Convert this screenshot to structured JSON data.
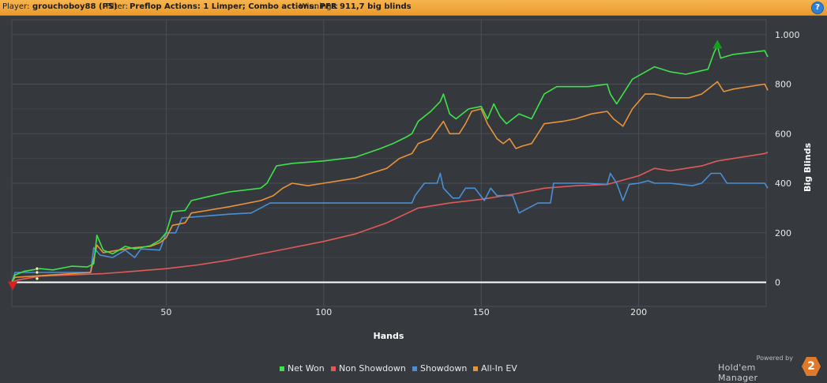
{
  "header": {
    "player_label": "Player:",
    "player_value": "grouchoboy88 (PS)",
    "filter_label": "Filter:",
    "filter_value": "Preflop Actions: 1 Limper; Combo actions: PFR",
    "winnings_label": "Winnings:",
    "winnings_value": "911,7 big blinds",
    "help_glyph": "?"
  },
  "branding": {
    "powered_by": "Powered by",
    "product": "Hold'em Manager",
    "logo_text": "2"
  },
  "chart_data": {
    "type": "line",
    "xlabel": "Hands",
    "ylabel": "Big Blinds",
    "xlim": [
      1,
      241
    ],
    "ylim": [
      -100,
      1000
    ],
    "x_ticks": [
      50,
      100,
      150,
      200
    ],
    "x_tick_labels": [
      "50",
      "100",
      "150",
      "200"
    ],
    "y_ticks": [
      1000,
      800,
      600,
      400,
      200,
      0
    ],
    "y_tick_labels": [
      "1.000",
      "800",
      "600",
      "400",
      "200",
      "0"
    ],
    "grid": true,
    "legend_position": "bottom",
    "markers": {
      "max": {
        "x": 225,
        "y": 960,
        "color": "#17a01d"
      },
      "min": {
        "x": 1,
        "y": 0,
        "color": "#e11d1d"
      }
    },
    "series": [
      {
        "name": "Net Won",
        "color": "#3ee24a",
        "points": [
          [
            1,
            0
          ],
          [
            2,
            30
          ],
          [
            5,
            45
          ],
          [
            10,
            55
          ],
          [
            14,
            50
          ],
          [
            20,
            65
          ],
          [
            25,
            62
          ],
          [
            27,
            75
          ],
          [
            28,
            190
          ],
          [
            30,
            130
          ],
          [
            33,
            115
          ],
          [
            37,
            145
          ],
          [
            40,
            135
          ],
          [
            45,
            148
          ],
          [
            48,
            170
          ],
          [
            50,
            200
          ],
          [
            52,
            285
          ],
          [
            56,
            290
          ],
          [
            58,
            330
          ],
          [
            63,
            345
          ],
          [
            70,
            365
          ],
          [
            80,
            380
          ],
          [
            82,
            400
          ],
          [
            85,
            470
          ],
          [
            90,
            480
          ],
          [
            100,
            490
          ],
          [
            110,
            505
          ],
          [
            118,
            540
          ],
          [
            122,
            560
          ],
          [
            126,
            585
          ],
          [
            128,
            600
          ],
          [
            130,
            650
          ],
          [
            134,
            690
          ],
          [
            137,
            730
          ],
          [
            138,
            760
          ],
          [
            140,
            680
          ],
          [
            142,
            660
          ],
          [
            146,
            700
          ],
          [
            150,
            710
          ],
          [
            152,
            660
          ],
          [
            154,
            720
          ],
          [
            156,
            670
          ],
          [
            158,
            640
          ],
          [
            160,
            660
          ],
          [
            162,
            680
          ],
          [
            166,
            660
          ],
          [
            170,
            760
          ],
          [
            174,
            790
          ],
          [
            184,
            790
          ],
          [
            190,
            800
          ],
          [
            191,
            760
          ],
          [
            193,
            720
          ],
          [
            198,
            820
          ],
          [
            205,
            870
          ],
          [
            210,
            850
          ],
          [
            215,
            840
          ],
          [
            222,
            860
          ],
          [
            224,
            930
          ],
          [
            225,
            955
          ],
          [
            226,
            905
          ],
          [
            230,
            920
          ],
          [
            240,
            935
          ],
          [
            241,
            910
          ]
        ]
      },
      {
        "name": "Non Showdown",
        "color": "#e05a5a",
        "points": [
          [
            1,
            0
          ],
          [
            3,
            10
          ],
          [
            10,
            25
          ],
          [
            20,
            30
          ],
          [
            30,
            35
          ],
          [
            40,
            45
          ],
          [
            50,
            55
          ],
          [
            60,
            70
          ],
          [
            70,
            90
          ],
          [
            80,
            115
          ],
          [
            90,
            140
          ],
          [
            100,
            165
          ],
          [
            110,
            195
          ],
          [
            120,
            240
          ],
          [
            125,
            270
          ],
          [
            130,
            300
          ],
          [
            140,
            320
          ],
          [
            150,
            335
          ],
          [
            160,
            355
          ],
          [
            170,
            380
          ],
          [
            180,
            390
          ],
          [
            190,
            395
          ],
          [
            200,
            430
          ],
          [
            205,
            460
          ],
          [
            210,
            450
          ],
          [
            220,
            470
          ],
          [
            225,
            490
          ],
          [
            230,
            500
          ],
          [
            240,
            520
          ],
          [
            241,
            525
          ]
        ]
      },
      {
        "name": "Showdown",
        "color": "#4a8fd6",
        "points": [
          [
            1,
            0
          ],
          [
            2,
            40
          ],
          [
            26,
            40
          ],
          [
            27,
            140
          ],
          [
            29,
            110
          ],
          [
            33,
            100
          ],
          [
            37,
            130
          ],
          [
            40,
            100
          ],
          [
            42,
            135
          ],
          [
            48,
            130
          ],
          [
            50,
            200
          ],
          [
            53,
            200
          ],
          [
            55,
            260
          ],
          [
            65,
            270
          ],
          [
            70,
            275
          ],
          [
            77,
            280
          ],
          [
            83,
            320
          ],
          [
            95,
            320
          ],
          [
            128,
            320
          ],
          [
            129,
            350
          ],
          [
            132,
            400
          ],
          [
            136,
            400
          ],
          [
            137,
            440
          ],
          [
            138,
            380
          ],
          [
            141,
            340
          ],
          [
            143,
            340
          ],
          [
            145,
            380
          ],
          [
            148,
            380
          ],
          [
            151,
            330
          ],
          [
            153,
            380
          ],
          [
            155,
            350
          ],
          [
            160,
            350
          ],
          [
            162,
            280
          ],
          [
            165,
            300
          ],
          [
            168,
            320
          ],
          [
            172,
            320
          ],
          [
            173,
            400
          ],
          [
            183,
            400
          ],
          [
            190,
            395
          ],
          [
            191,
            440
          ],
          [
            193,
            400
          ],
          [
            195,
            330
          ],
          [
            197,
            395
          ],
          [
            200,
            400
          ],
          [
            203,
            410
          ],
          [
            205,
            400
          ],
          [
            210,
            400
          ],
          [
            217,
            390
          ],
          [
            220,
            400
          ],
          [
            223,
            440
          ],
          [
            226,
            440
          ],
          [
            228,
            400
          ],
          [
            240,
            400
          ],
          [
            241,
            380
          ]
        ]
      },
      {
        "name": "All-In EV",
        "color": "#e8923a",
        "points": [
          [
            1,
            0
          ],
          [
            2,
            20
          ],
          [
            8,
            25
          ],
          [
            14,
            30
          ],
          [
            20,
            35
          ],
          [
            26,
            40
          ],
          [
            28,
            150
          ],
          [
            30,
            120
          ],
          [
            35,
            130
          ],
          [
            40,
            140
          ],
          [
            45,
            145
          ],
          [
            48,
            160
          ],
          [
            50,
            180
          ],
          [
            52,
            230
          ],
          [
            56,
            240
          ],
          [
            58,
            280
          ],
          [
            63,
            290
          ],
          [
            70,
            305
          ],
          [
            80,
            330
          ],
          [
            84,
            350
          ],
          [
            87,
            380
          ],
          [
            90,
            400
          ],
          [
            95,
            390
          ],
          [
            100,
            400
          ],
          [
            110,
            420
          ],
          [
            115,
            440
          ],
          [
            120,
            460
          ],
          [
            124,
            500
          ],
          [
            128,
            520
          ],
          [
            130,
            560
          ],
          [
            134,
            580
          ],
          [
            138,
            650
          ],
          [
            140,
            600
          ],
          [
            143,
            600
          ],
          [
            145,
            640
          ],
          [
            147,
            690
          ],
          [
            150,
            700
          ],
          [
            152,
            640
          ],
          [
            155,
            580
          ],
          [
            157,
            560
          ],
          [
            159,
            580
          ],
          [
            161,
            540
          ],
          [
            163,
            550
          ],
          [
            166,
            560
          ],
          [
            168,
            600
          ],
          [
            170,
            640
          ],
          [
            176,
            650
          ],
          [
            180,
            660
          ],
          [
            185,
            680
          ],
          [
            190,
            690
          ],
          [
            192,
            660
          ],
          [
            195,
            630
          ],
          [
            198,
            700
          ],
          [
            202,
            760
          ],
          [
            205,
            760
          ],
          [
            210,
            745
          ],
          [
            216,
            745
          ],
          [
            220,
            760
          ],
          [
            223,
            790
          ],
          [
            225,
            810
          ],
          [
            227,
            770
          ],
          [
            230,
            780
          ],
          [
            240,
            800
          ],
          [
            241,
            775
          ]
        ]
      }
    ]
  }
}
